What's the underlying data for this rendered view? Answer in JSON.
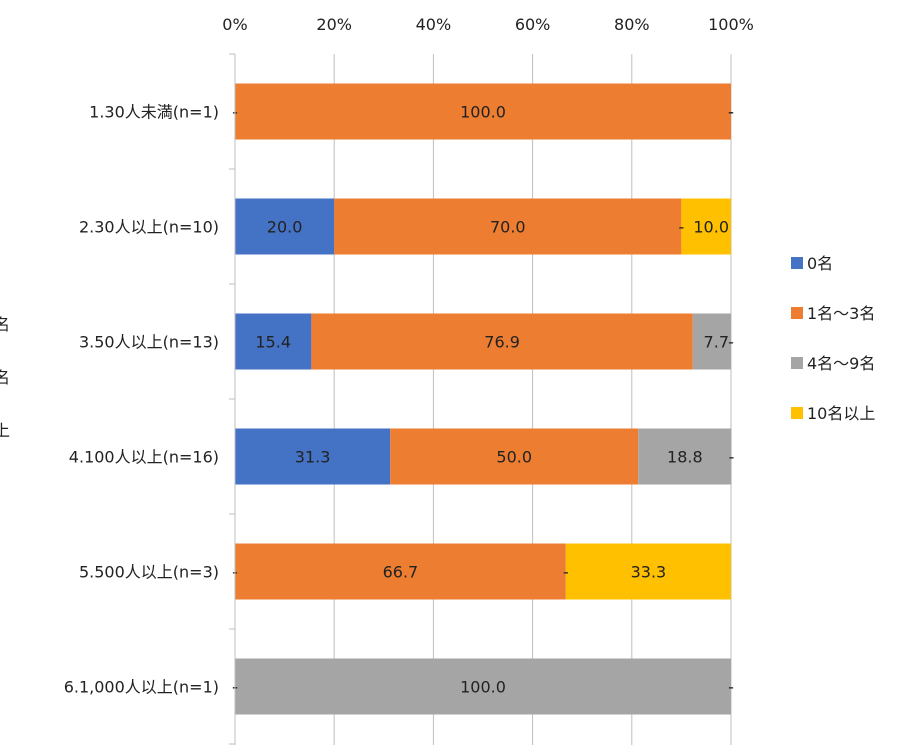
{
  "chart_data": {
    "type": "bar",
    "orientation": "horizontal",
    "stacked": "percent",
    "title": "",
    "xlabel": "",
    "ylabel": "",
    "xlim": [
      0,
      100
    ],
    "x_ticks": [
      "0%",
      "20%",
      "40%",
      "60%",
      "80%",
      "100%"
    ],
    "x_axis_position": "top",
    "grid": true,
    "legend_position": "right",
    "categories": [
      "1.30人未満(n=1)",
      "2.30人以上(n=10)",
      "3.50人以上(n=13)",
      "4.100人以上(n=16)",
      "5.500人以上(n=3)",
      "6.1,000人以上(n=1)"
    ],
    "series": [
      {
        "name": "0名",
        "color": "#4472C4",
        "values": [
          0,
          20.0,
          15.4,
          31.3,
          0,
          0
        ],
        "labels": [
          "-",
          "20.0",
          "15.4",
          "31.3",
          "-",
          "-"
        ]
      },
      {
        "name": "1名～3名",
        "color": "#ED7D31",
        "values": [
          100.0,
          70.0,
          76.9,
          50.0,
          66.7,
          0
        ],
        "labels": [
          "100.0",
          "70.0",
          "76.9",
          "50.0",
          "66.7",
          "-"
        ]
      },
      {
        "name": "4名～9名",
        "color": "#A5A5A5",
        "values": [
          0,
          0,
          7.7,
          18.8,
          0,
          100.0
        ],
        "labels": [
          "-",
          "-",
          "7.7",
          "18.8",
          "-",
          "100.0"
        ]
      },
      {
        "name": "10名以上",
        "color": "#FFC000",
        "values": [
          0,
          10.0,
          0,
          0,
          33.3,
          0
        ],
        "labels": [
          "-",
          "10.0",
          "-",
          "-",
          "33.3",
          "-"
        ]
      }
    ],
    "clipped_left_axis_title_chars": [
      "名",
      "名",
      "上"
    ]
  }
}
